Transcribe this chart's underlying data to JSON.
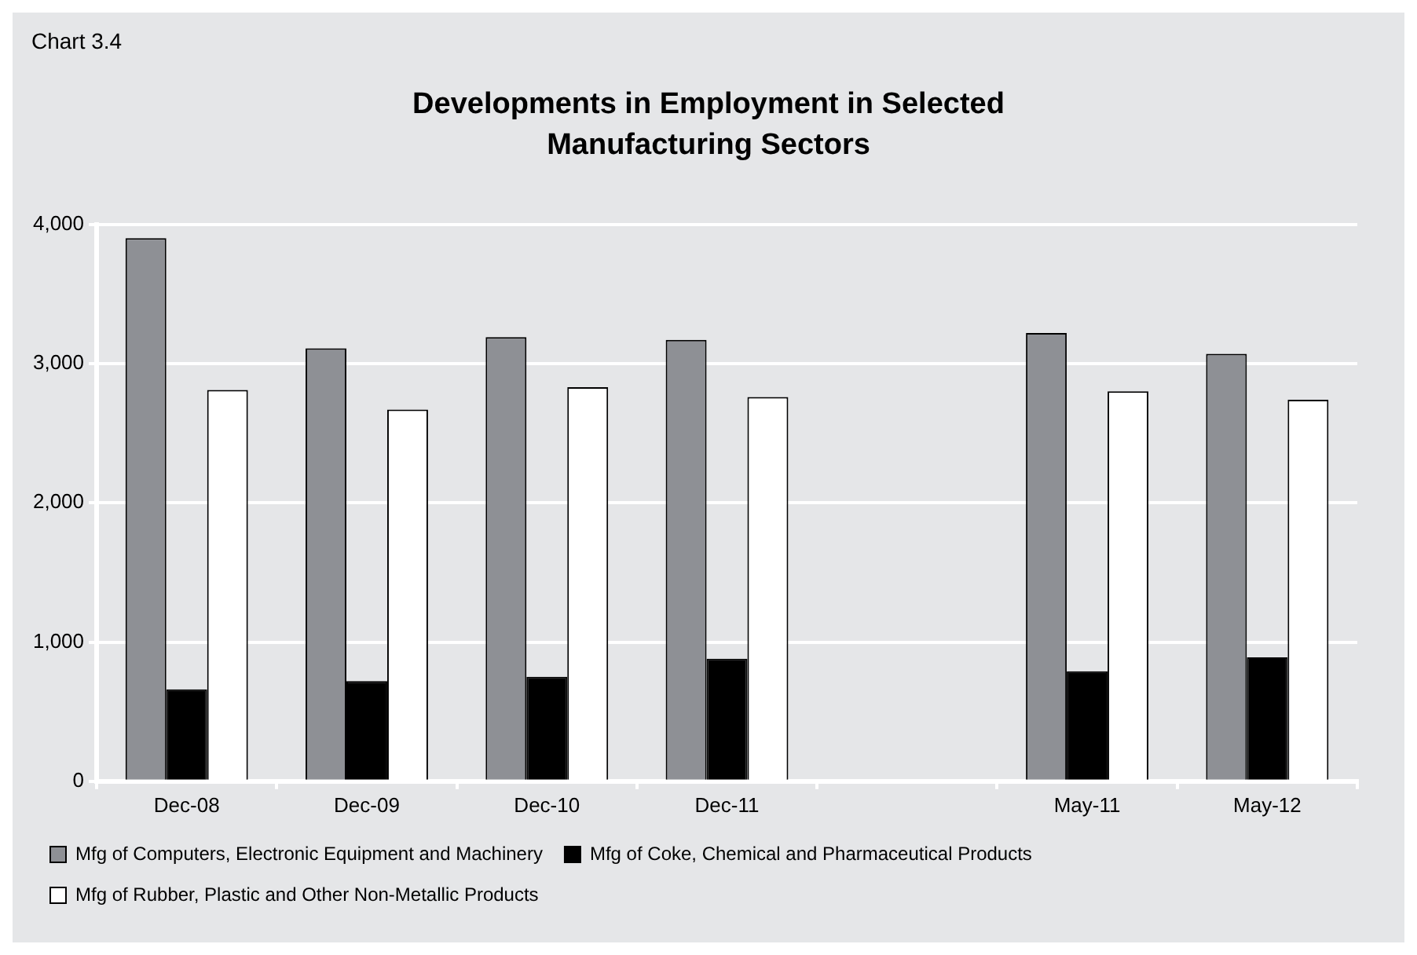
{
  "chart_data": {
    "type": "bar",
    "title": "Developments in Employment in Selected Manufacturing Sectors",
    "annotations": [
      "Chart 3.4"
    ],
    "categories": [
      "Dec-08",
      "Dec-09",
      "Dec-10",
      "Dec-11",
      null,
      "May-11",
      "May-12"
    ],
    "series": [
      {
        "name": "Mfg of Computers, Electronic Equipment and Machinery",
        "color": "#8e9095",
        "values": [
          3900,
          3110,
          3190,
          3170,
          null,
          3220,
          3070
        ]
      },
      {
        "name": "Mfg of Coke, Chemical and Pharmaceutical Products",
        "color": "#000000",
        "values": [
          660,
          720,
          750,
          880,
          null,
          790,
          890
        ]
      },
      {
        "name": "Mfg of Rubber, Plastic and Other Non-Metallic Products",
        "color": "#ffffff",
        "values": [
          2810,
          2670,
          2830,
          2760,
          null,
          2800,
          2740
        ]
      }
    ],
    "ylim": [
      0,
      4000
    ],
    "yticks": [
      {
        "value": 0,
        "label": "0"
      },
      {
        "value": 1000,
        "label": "1,000"
      },
      {
        "value": 2000,
        "label": "2,000"
      },
      {
        "value": 3000,
        "label": "3,000"
      },
      {
        "value": 4000,
        "label": "4,000"
      }
    ],
    "grid": "y",
    "legend": "bottom"
  }
}
